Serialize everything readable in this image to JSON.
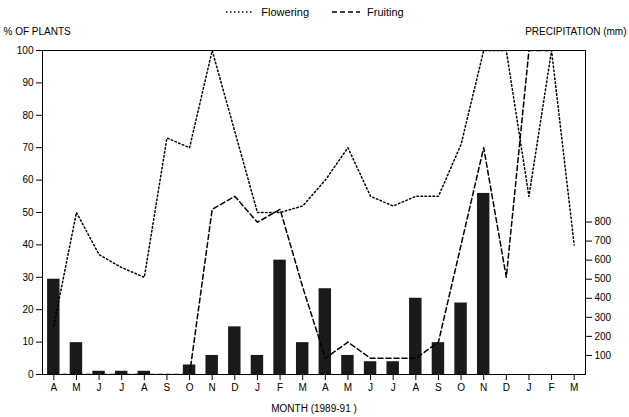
{
  "chart_data": {
    "type": "bar",
    "xlabel": "MONTH (1989-91 )",
    "ylabel": "% OF PLANTS",
    "y2label": "PRECIPITATION (mm)",
    "categories": [
      "A",
      "M",
      "J",
      "J",
      "A",
      "S",
      "O",
      "N",
      "D",
      "J",
      "F",
      "M",
      "A",
      "M",
      "J",
      "J",
      "A",
      "S",
      "O",
      "N",
      "D",
      "J",
      "F",
      "M"
    ],
    "series": [
      {
        "type": "bar",
        "axis": "y2",
        "color": "#1a1a1a",
        "values": [
          500,
          167,
          17,
          17,
          17,
          0,
          50,
          100,
          250,
          100,
          600,
          167,
          450,
          100,
          67,
          67,
          400,
          167,
          375,
          950,
          null,
          null,
          null,
          null
        ]
      },
      {
        "name": "Flowering",
        "type": "line",
        "color": "black",
        "line_style": "dotted",
        "values": [
          15,
          50,
          37,
          33,
          30,
          73,
          70,
          100,
          75,
          50,
          50,
          52,
          60,
          70,
          55,
          52,
          55,
          55,
          71,
          100,
          100,
          55,
          100,
          40
        ]
      },
      {
        "name": "Fruiting",
        "type": "line",
        "color": "black",
        "line_style": "dashed",
        "values": [
          0,
          0,
          0,
          0,
          0,
          0,
          0,
          51,
          55,
          47,
          51,
          27,
          5,
          10,
          5,
          5,
          5,
          10,
          40,
          70,
          30,
          100,
          100,
          null
        ]
      }
    ],
    "ylim": [
      0,
      100
    ],
    "yticks": [
      0,
      10,
      20,
      30,
      40,
      50,
      60,
      70,
      80,
      90,
      100
    ],
    "y2lim": [
      0,
      1700
    ],
    "y2ticks": [
      100,
      200,
      300,
      400,
      500,
      600,
      700,
      800
    ],
    "grid": false,
    "legend": "top"
  }
}
